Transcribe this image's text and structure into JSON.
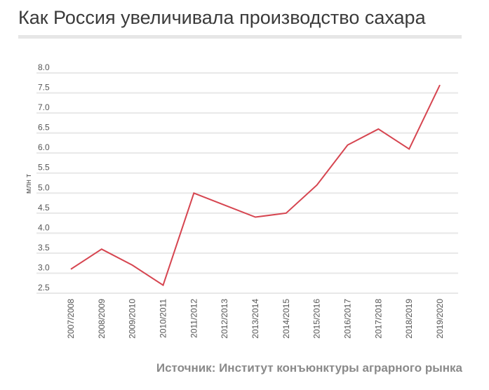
{
  "title": "Как Россия увеличивала производство сахара",
  "source": "Источник: Институт конъюнктуры аграрного рынка",
  "colors": {
    "line": "#d64550",
    "grid": "#e8e8e8",
    "text": "#555555"
  },
  "chart_data": {
    "type": "line",
    "title": "Как Россия увеличивала производство сахара",
    "xlabel": "",
    "ylabel": "млн т",
    "ylim": [
      2.5,
      8.0
    ],
    "yticks": [
      "2.5",
      "3.0",
      "3.5",
      "4.0",
      "4.5",
      "5.0",
      "5.5",
      "6.0",
      "6.5",
      "7.0",
      "7.5",
      "8.0"
    ],
    "grid": true,
    "categories": [
      "2007/2008",
      "2008/2009",
      "2009/2010",
      "2010/2011",
      "2011/2012",
      "2012/2013",
      "2013/2014",
      "2014/2015",
      "2015/2016",
      "2016/2017",
      "2017/2018",
      "2018/2019",
      "2019/2020"
    ],
    "series": [
      {
        "name": "Производство сахара",
        "values": [
          3.1,
          3.6,
          3.2,
          2.7,
          5.0,
          4.7,
          4.4,
          4.5,
          5.2,
          6.2,
          6.6,
          6.1,
          7.7
        ]
      }
    ]
  }
}
